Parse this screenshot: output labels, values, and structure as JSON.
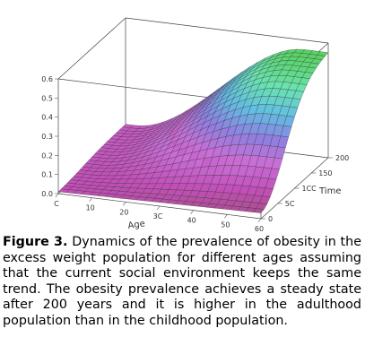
{
  "chart_data": {
    "type": "surface",
    "title": "",
    "xlabel": "Age",
    "ylabel": "Time",
    "zlabel": "",
    "x_ticks": [
      "C",
      "10",
      "20",
      "3C",
      "40",
      "50",
      "60"
    ],
    "x_tick_values": [
      0,
      10,
      20,
      30,
      40,
      50,
      60
    ],
    "y_ticks": [
      "0",
      "5C",
      "1CC",
      "150",
      "200"
    ],
    "y_tick_values": [
      0,
      50,
      100,
      150,
      200
    ],
    "z_ticks": [
      "0.0",
      "0.1",
      "0.2",
      "0.3",
      "0.4",
      "0.5",
      "0.6"
    ],
    "z_tick_values": [
      0,
      0.1,
      0.2,
      0.3,
      0.4,
      0.5,
      0.6
    ],
    "xlim": [
      0,
      60
    ],
    "ylim": [
      0,
      200
    ],
    "zlim": [
      0,
      0.6
    ],
    "grid": "mesh",
    "colormap": [
      "#a24f80",
      "#c24fb8",
      "#c96ed6",
      "#8f7fe0",
      "#62bde4",
      "#6ae3b0",
      "#57cf5a"
    ],
    "surface_points": {
      "age": [
        0,
        60
      ],
      "time": [
        0,
        200
      ],
      "prevalence": [
        [
          0.01,
          0.03
        ],
        [
          0.12,
          0.55
        ]
      ]
    }
  },
  "caption": {
    "label": "Figure 3.",
    "text": "Dynamics of the prevalence of obesity in the excess weight population for different ages assuming that the current social environment keeps the same trend. The obesity prevalence achieves a steady state after 200 years and it is higher in the adulthood population than in the childhood population."
  }
}
